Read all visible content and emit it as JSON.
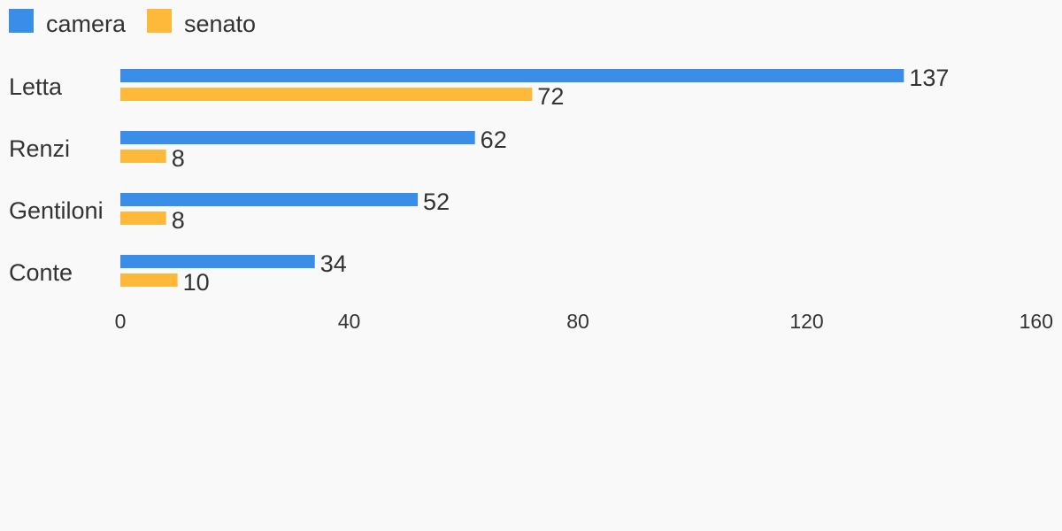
{
  "chart_data": {
    "type": "bar",
    "orientation": "horizontal",
    "categories": [
      "Letta",
      "Renzi",
      "Gentiloni",
      "Conte"
    ],
    "series": [
      {
        "name": "camera",
        "color": "#3a8ee8",
        "values": [
          137,
          62,
          52,
          34
        ]
      },
      {
        "name": "senato",
        "color": "#ffb93a",
        "values": [
          72,
          8,
          8,
          10
        ]
      }
    ],
    "xlim": [
      0,
      160
    ],
    "xticks": [
      0,
      40,
      80,
      120,
      160
    ],
    "legend_position": "top-left",
    "grid": false,
    "data_labels": true
  }
}
